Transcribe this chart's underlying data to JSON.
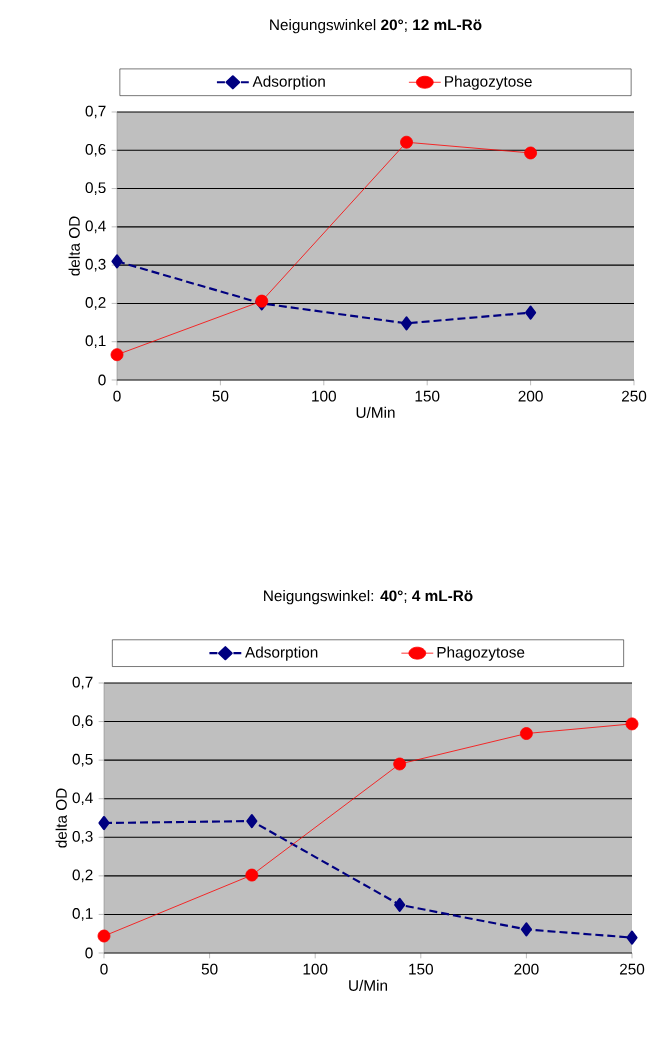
{
  "chart_data": [
    {
      "type": "line",
      "title": "Neigungswinkel  **20°**; **12 mL-Rö**",
      "xlabel": "U/Min",
      "ylabel": "delta OD",
      "x": [
        0,
        70,
        140,
        200
      ],
      "series": [
        {
          "name": "Adsorption",
          "color": "#000080",
          "marker": "diamond",
          "line_style": "dashed",
          "values": [
            0.31,
            0.2,
            0.148,
            0.176
          ]
        },
        {
          "name": "Phagozytose",
          "color": "#ff0000",
          "marker": "circle",
          "line_style": "solid",
          "values": [
            0.066,
            0.206,
            0.621,
            0.593
          ]
        }
      ],
      "xlim": [
        0,
        250
      ],
      "xticks": [
        0,
        50,
        100,
        150,
        200,
        250
      ],
      "ylim": [
        0,
        0.7
      ],
      "yticks": [
        0,
        {
          "value": 0.1,
          "label": "0,1"
        },
        {
          "value": 0.2,
          "label": "0,2"
        },
        {
          "value": 0.3,
          "label": "0,3"
        },
        {
          "value": 0.4,
          "label": "0,4"
        },
        {
          "value": 0.5,
          "label": "0,5"
        },
        {
          "value": 0.6,
          "label": "0,6"
        },
        {
          "value": 0.7,
          "label": "0,7"
        }
      ],
      "grid": "y",
      "legend": "top"
    },
    {
      "type": "line",
      "title": "Neigungswinkel:  **40°**; **4 mL-Rö**",
      "xlabel": "U/Min",
      "ylabel": "delta OD",
      "x": [
        0,
        70,
        140,
        200,
        250
      ],
      "series": [
        {
          "name": "Adsorption",
          "color": "#000080",
          "marker": "diamond",
          "line_style": "dashed",
          "values": [
            0.337,
            0.342,
            0.125,
            0.061,
            0.04
          ]
        },
        {
          "name": "Phagozytose",
          "color": "#ff0000",
          "marker": "circle",
          "line_style": "solid",
          "values": [
            0.044,
            0.202,
            0.49,
            0.569,
            0.594
          ]
        }
      ],
      "xlim": [
        0,
        250
      ],
      "xticks": [
        0,
        50,
        100,
        150,
        200,
        250
      ],
      "ylim": [
        0,
        0.7
      ],
      "yticks": [
        0,
        {
          "value": 0.1,
          "label": "0,1"
        },
        {
          "value": 0.2,
          "label": "0,2"
        },
        {
          "value": 0.3,
          "label": "0,3"
        },
        {
          "value": 0.4,
          "label": "0,4"
        },
        {
          "value": 0.5,
          "label": "0,5"
        },
        {
          "value": 0.6,
          "label": "0,6"
        },
        {
          "value": 0.7,
          "label": "0,7"
        }
      ],
      "grid": "y",
      "legend": "top"
    }
  ]
}
